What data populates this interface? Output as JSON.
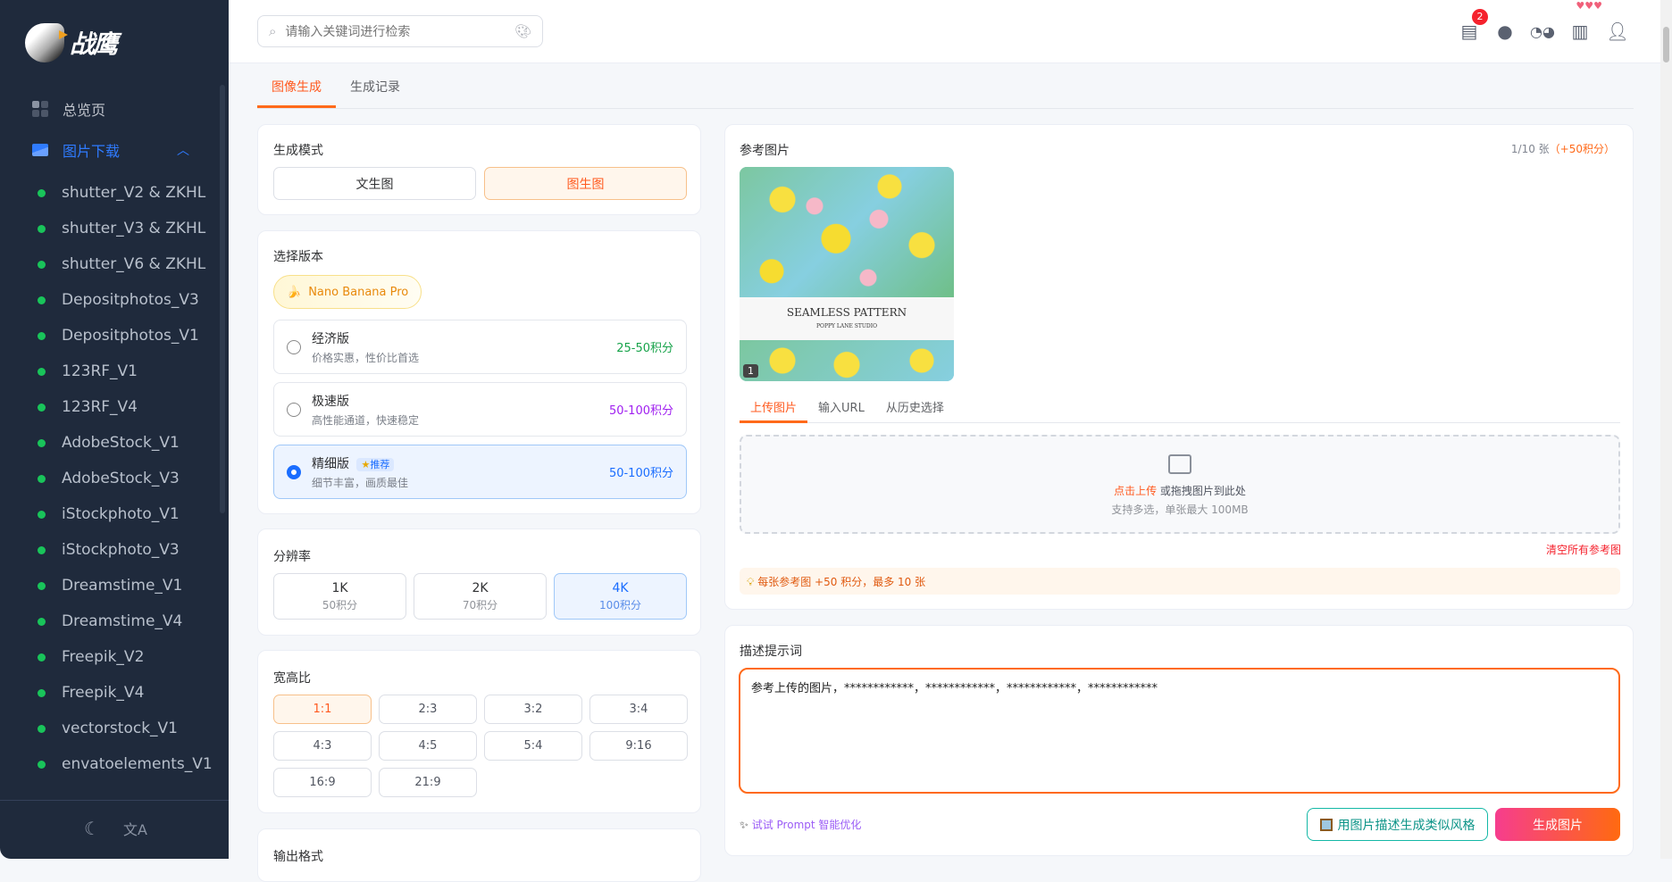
{
  "sidebar": {
    "brand": "战鹰",
    "nav_overview": "总览页",
    "nav_download": "图片下载",
    "items": [
      "shutter_V2 & ZKHL",
      "shutter_V3 & ZKHL",
      "shutter_V6 & ZKHL",
      "Depositphotos_V3",
      "Depositphotos_V1",
      "123RF_V1",
      "123RF_V4",
      "AdobeStock_V1",
      "AdobeStock_V3",
      "iStockphoto_V1",
      "iStockphoto_V3",
      "Dreamstime_V1",
      "Dreamstime_V4",
      "Freepik_V2",
      "Freepik_V4",
      "vectorstock_V1",
      "envatoelements_V1"
    ],
    "status_color": "#19c45a",
    "accent": "#2f7bff"
  },
  "topbar": {
    "search_placeholder": "请输入关键词进行检索",
    "message_badge": "2"
  },
  "tabs": [
    "图像生成",
    "生成记录"
  ],
  "mode": {
    "title": "生成模式",
    "options": [
      "文生图",
      "图生图"
    ],
    "selected": "图生图"
  },
  "version": {
    "title": "选择版本",
    "model": "Nano Banana Pro",
    "options": [
      {
        "name": "经济版",
        "desc": "价格实惠，性价比首选",
        "price": "25-50积分",
        "color": "#17a34a"
      },
      {
        "name": "极速版",
        "desc": "高性能通道，快速稳定",
        "price": "50-100积分",
        "color": "#a020f0"
      },
      {
        "name": "精细版",
        "tag": "推荐",
        "desc": "细节丰富，画质最佳",
        "price": "50-100积分",
        "color": "#1a6dff"
      }
    ],
    "selected": "精细版"
  },
  "resolution": {
    "title": "分辨率",
    "options": [
      {
        "label": "1K",
        "cost": "50积分"
      },
      {
        "label": "2K",
        "cost": "70积分"
      },
      {
        "label": "4K",
        "cost": "100积分"
      }
    ],
    "selected": "4K"
  },
  "aspect": {
    "title": "宽高比",
    "options": [
      "1:1",
      "2:3",
      "3:2",
      "3:4",
      "4:3",
      "4:5",
      "5:4",
      "9:16",
      "16:9",
      "21:9"
    ],
    "selected": "1:1"
  },
  "output_format": {
    "title": "输出格式"
  },
  "reference": {
    "title": "参考图片",
    "count": "1/10 张",
    "extra": "（+50积分）",
    "image": {
      "title": "SEAMLESS PATTERN",
      "subtitle": "POPPY LANE STUDIO",
      "index": "1"
    },
    "tabs": [
      "上传图片",
      "输入URL",
      "从历史选择"
    ],
    "drop_link": "点击上传",
    "drop_text": " 或拖拽图片到此处",
    "drop_hint": "支持多选，单张最大 100MB",
    "clear": "清空所有参考图",
    "tip": "每张参考图 +50 积分，最多 10 张"
  },
  "prompt": {
    "title": "描述提示词",
    "value": "参考上传的图片，************，************，************，************",
    "optimize": "试试 Prompt 智能优化",
    "describe_button": "用图片描述生成类似风格",
    "generate_button": "生成图片"
  }
}
